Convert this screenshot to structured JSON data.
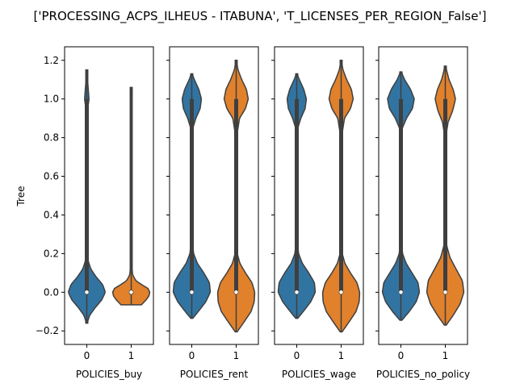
{
  "figure": {
    "title": "['PROCESSING_ACPS_ILHEUS - ITABUNA', 'T_LICENSES_PER_REGION_False']"
  },
  "colors": {
    "series0": "#3274a1",
    "series1": "#e1812c",
    "edge": "#3f3f3f"
  },
  "chart_data": {
    "type": "violin",
    "ylabel": "Tree",
    "ylim": [
      -0.27,
      1.27
    ],
    "yticks": [
      -0.2,
      0.0,
      0.2,
      0.4,
      0.6,
      0.8,
      1.0,
      1.2
    ],
    "ytick_labels": [
      "−0.2",
      "0.0",
      "0.2",
      "0.4",
      "0.6",
      "0.8",
      "1.0",
      "1.2"
    ],
    "panels": [
      {
        "xlabel": "POLICIES_buy",
        "categories": [
          "0",
          "1"
        ],
        "violins": [
          {
            "category": "0",
            "min": -0.16,
            "max": 1.15,
            "median": 0.0,
            "q1": 0.0,
            "q3": 1.0,
            "density": [
              [
                -0.16,
                0.02
              ],
              [
                -0.12,
                0.15
              ],
              [
                -0.08,
                0.45
              ],
              [
                -0.04,
                0.8
              ],
              [
                0.0,
                1.0
              ],
              [
                0.04,
                0.85
              ],
              [
                0.08,
                0.5
              ],
              [
                0.12,
                0.22
              ],
              [
                0.16,
                0.08
              ],
              [
                0.22,
                0.03
              ],
              [
                0.3,
                0.02
              ],
              [
                0.5,
                0.015
              ],
              [
                0.7,
                0.015
              ],
              [
                0.85,
                0.02
              ],
              [
                0.95,
                0.05
              ],
              [
                1.0,
                0.12
              ],
              [
                1.05,
                0.08
              ],
              [
                1.1,
                0.04
              ],
              [
                1.15,
                0.005
              ]
            ]
          },
          {
            "category": "1",
            "min": -0.065,
            "max": 1.06,
            "median": 0.0,
            "q1": -0.01,
            "q3": 0.01,
            "density": [
              [
                -0.065,
                0.55
              ],
              [
                -0.04,
                0.8
              ],
              [
                -0.02,
                0.95
              ],
              [
                0.0,
                1.0
              ],
              [
                0.02,
                0.9
              ],
              [
                0.04,
                0.55
              ],
              [
                0.06,
                0.25
              ],
              [
                0.09,
                0.08
              ],
              [
                0.14,
                0.03
              ],
              [
                0.3,
                0.01
              ],
              [
                0.6,
                0.008
              ],
              [
                0.9,
                0.008
              ],
              [
                1.06,
                0.003
              ]
            ]
          }
        ]
      },
      {
        "xlabel": "POLICIES_rent",
        "categories": [
          "0",
          "1"
        ],
        "violins": [
          {
            "category": "0",
            "min": -0.135,
            "max": 1.13,
            "median": 0.0,
            "q1": 0.0,
            "q3": 1.0,
            "density": [
              [
                -0.135,
                0.05
              ],
              [
                -0.1,
                0.35
              ],
              [
                -0.05,
                0.75
              ],
              [
                0.0,
                1.0
              ],
              [
                0.05,
                0.95
              ],
              [
                0.1,
                0.65
              ],
              [
                0.15,
                0.3
              ],
              [
                0.2,
                0.1
              ],
              [
                0.28,
                0.02
              ],
              [
                0.4,
                0.008
              ],
              [
                0.6,
                0.006
              ],
              [
                0.75,
                0.01
              ],
              [
                0.85,
                0.06
              ],
              [
                0.9,
                0.22
              ],
              [
                0.95,
                0.45
              ],
              [
                1.0,
                0.52
              ],
              [
                1.05,
                0.38
              ],
              [
                1.1,
                0.14
              ],
              [
                1.13,
                0.02
              ]
            ]
          },
          {
            "category": "1",
            "min": -0.205,
            "max": 1.2,
            "median": 0.0,
            "q1": 0.0,
            "q3": 1.0,
            "density": [
              [
                -0.205,
                0.05
              ],
              [
                -0.15,
                0.45
              ],
              [
                -0.1,
                0.8
              ],
              [
                -0.05,
                0.97
              ],
              [
                0.0,
                1.0
              ],
              [
                0.05,
                0.85
              ],
              [
                0.1,
                0.5
              ],
              [
                0.15,
                0.2
              ],
              [
                0.2,
                0.06
              ],
              [
                0.3,
                0.01
              ],
              [
                0.5,
                0.006
              ],
              [
                0.7,
                0.006
              ],
              [
                0.8,
                0.02
              ],
              [
                0.9,
                0.18
              ],
              [
                0.95,
                0.5
              ],
              [
                1.0,
                0.65
              ],
              [
                1.05,
                0.55
              ],
              [
                1.1,
                0.3
              ],
              [
                1.15,
                0.1
              ],
              [
                1.2,
                0.01
              ]
            ]
          }
        ]
      },
      {
        "xlabel": "POLICIES_wage",
        "categories": [
          "0",
          "1"
        ],
        "violins": [
          {
            "category": "0",
            "min": -0.135,
            "max": 1.13,
            "median": 0.0,
            "q1": 0.0,
            "q3": 1.0,
            "density": [
              [
                -0.135,
                0.05
              ],
              [
                -0.1,
                0.35
              ],
              [
                -0.05,
                0.75
              ],
              [
                0.0,
                1.0
              ],
              [
                0.05,
                0.95
              ],
              [
                0.1,
                0.65
              ],
              [
                0.15,
                0.3
              ],
              [
                0.2,
                0.1
              ],
              [
                0.28,
                0.02
              ],
              [
                0.4,
                0.008
              ],
              [
                0.6,
                0.006
              ],
              [
                0.75,
                0.01
              ],
              [
                0.85,
                0.06
              ],
              [
                0.9,
                0.22
              ],
              [
                0.95,
                0.45
              ],
              [
                1.0,
                0.52
              ],
              [
                1.05,
                0.38
              ],
              [
                1.1,
                0.14
              ],
              [
                1.13,
                0.02
              ]
            ]
          },
          {
            "category": "1",
            "min": -0.205,
            "max": 1.2,
            "median": 0.0,
            "q1": 0.0,
            "q3": 1.0,
            "density": [
              [
                -0.205,
                0.05
              ],
              [
                -0.15,
                0.45
              ],
              [
                -0.1,
                0.8
              ],
              [
                -0.05,
                0.97
              ],
              [
                0.0,
                1.0
              ],
              [
                0.05,
                0.85
              ],
              [
                0.1,
                0.5
              ],
              [
                0.15,
                0.2
              ],
              [
                0.2,
                0.06
              ],
              [
                0.3,
                0.01
              ],
              [
                0.5,
                0.006
              ],
              [
                0.7,
                0.006
              ],
              [
                0.8,
                0.02
              ],
              [
                0.9,
                0.18
              ],
              [
                0.95,
                0.5
              ],
              [
                1.0,
                0.65
              ],
              [
                1.05,
                0.55
              ],
              [
                1.1,
                0.3
              ],
              [
                1.15,
                0.1
              ],
              [
                1.2,
                0.01
              ]
            ]
          }
        ]
      },
      {
        "xlabel": "POLICIES_no_policy",
        "categories": [
          "0",
          "1"
        ],
        "violins": [
          {
            "category": "0",
            "min": -0.145,
            "max": 1.14,
            "median": 0.0,
            "q1": 0.0,
            "q3": 1.0,
            "density": [
              [
                -0.145,
                0.05
              ],
              [
                -0.1,
                0.45
              ],
              [
                -0.05,
                0.82
              ],
              [
                0.0,
                1.0
              ],
              [
                0.05,
                0.92
              ],
              [
                0.1,
                0.6
              ],
              [
                0.15,
                0.28
              ],
              [
                0.2,
                0.09
              ],
              [
                0.28,
                0.02
              ],
              [
                0.4,
                0.008
              ],
              [
                0.6,
                0.006
              ],
              [
                0.75,
                0.01
              ],
              [
                0.85,
                0.08
              ],
              [
                0.9,
                0.3
              ],
              [
                0.95,
                0.62
              ],
              [
                1.0,
                0.72
              ],
              [
                1.05,
                0.52
              ],
              [
                1.1,
                0.2
              ],
              [
                1.14,
                0.02
              ]
            ]
          },
          {
            "category": "1",
            "min": -0.17,
            "max": 1.17,
            "median": 0.0,
            "q1": 0.0,
            "q3": 1.0,
            "density": [
              [
                -0.17,
                0.05
              ],
              [
                -0.12,
                0.42
              ],
              [
                -0.06,
                0.8
              ],
              [
                0.0,
                1.0
              ],
              [
                0.06,
                0.92
              ],
              [
                0.12,
                0.58
              ],
              [
                0.18,
                0.25
              ],
              [
                0.24,
                0.08
              ],
              [
                0.32,
                0.02
              ],
              [
                0.45,
                0.007
              ],
              [
                0.65,
                0.006
              ],
              [
                0.8,
                0.02
              ],
              [
                0.88,
                0.15
              ],
              [
                0.94,
                0.4
              ],
              [
                1.0,
                0.55
              ],
              [
                1.05,
                0.42
              ],
              [
                1.1,
                0.2
              ],
              [
                1.17,
                0.01
              ]
            ]
          }
        ]
      }
    ]
  }
}
